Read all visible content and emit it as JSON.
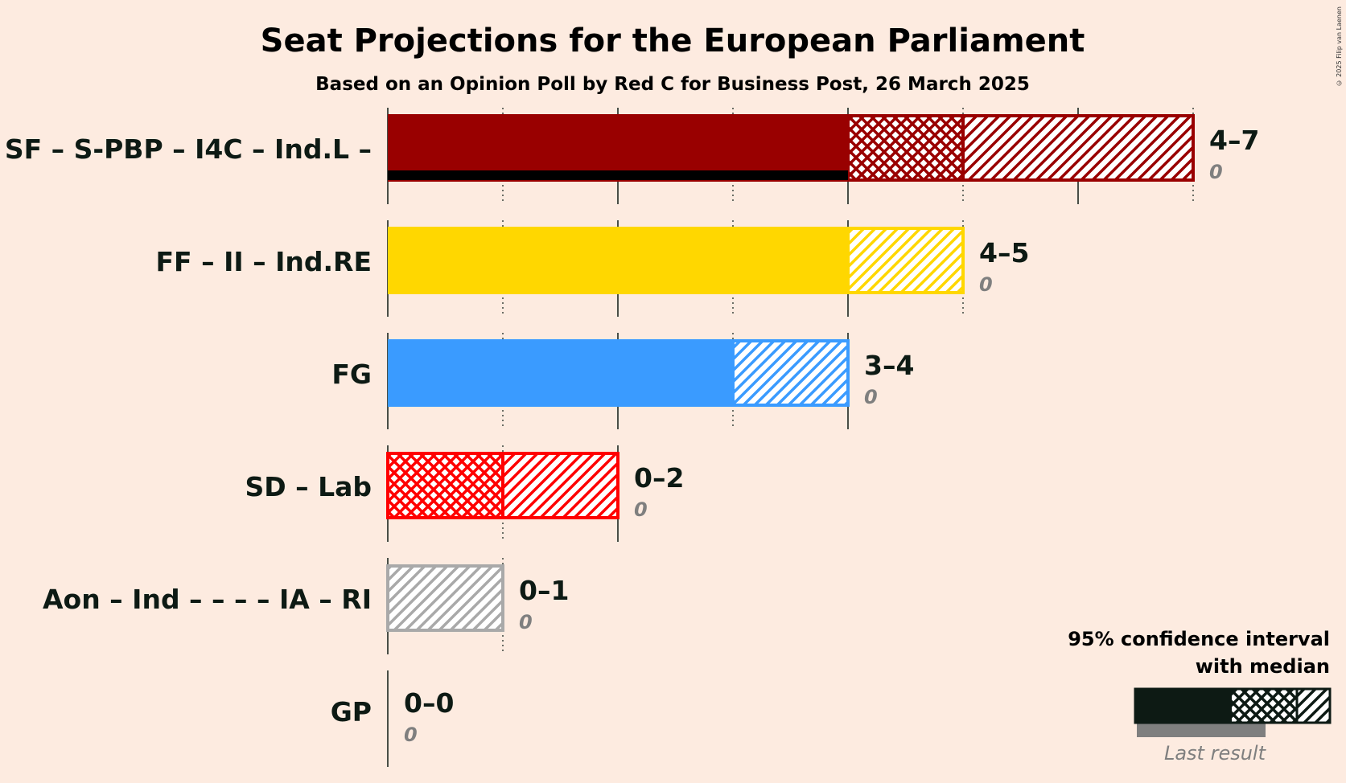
{
  "title": "Seat Projections for the European Parliament",
  "subtitle": "Based on an Opinion Poll by Red C for Business Post, 26 March 2025",
  "copyright": "© 2025 Filip van Laenen",
  "legend": {
    "line1": "95% confidence interval",
    "line2": "with median",
    "last_result": "Last result"
  },
  "colors": {
    "background": "#fdebe0",
    "text": "#0d1a14",
    "last_result_text": "#7f7f7f"
  },
  "chart_data": {
    "type": "bar",
    "title": "Seat Projections for the European Parliament",
    "subtitle": "Based on an Opinion Poll by Red C for Business Post, 26 March 2025",
    "xlim": [
      0,
      7
    ],
    "grid": true,
    "orientation": "horizontal",
    "series": [
      {
        "name": "SF – S-PBP – I4C – Ind.L –",
        "low": 4,
        "median": 5,
        "high": 7,
        "last_result": 0,
        "range_label": "4–7",
        "last_label": "0",
        "color": "#990000"
      },
      {
        "name": "FF – II – Ind.RE",
        "low": 4,
        "median": 4,
        "high": 5,
        "last_result": 0,
        "range_label": "4–5",
        "last_label": "0",
        "color": "#ffd700"
      },
      {
        "name": "FG",
        "low": 3,
        "median": 3,
        "high": 4,
        "last_result": 0,
        "range_label": "3–4",
        "last_label": "0",
        "color": "#3a9bff"
      },
      {
        "name": "SD – Lab",
        "low": 0,
        "median": 1,
        "high": 2,
        "last_result": 0,
        "range_label": "0–2",
        "last_label": "0",
        "color": "#ff0000"
      },
      {
        "name": "Aon – Ind – – – – IA – RI",
        "low": 0,
        "median": 0,
        "high": 1,
        "last_result": 0,
        "range_label": "0–1",
        "last_label": "0",
        "color": "#a9a9a9"
      },
      {
        "name": "GP",
        "low": 0,
        "median": 0,
        "high": 0,
        "last_result": 0,
        "range_label": "0–0",
        "last_label": "0",
        "color": "#2e8b57"
      }
    ]
  }
}
